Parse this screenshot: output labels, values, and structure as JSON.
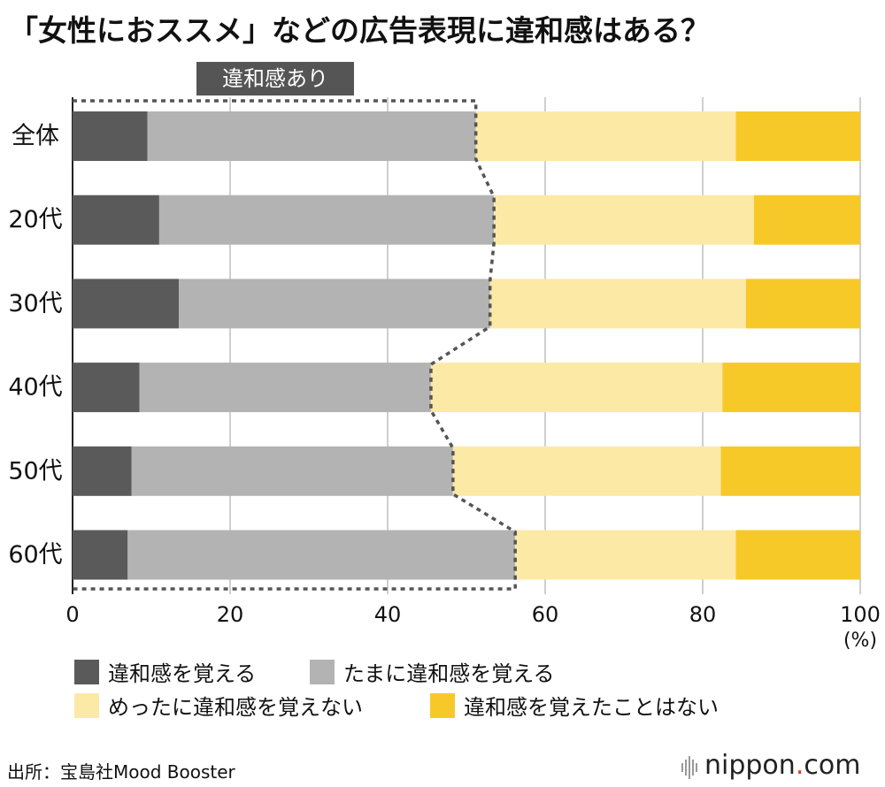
{
  "title": "「女性におススメ」などの広告表現に違和感はある？",
  "chart_data": {
    "type": "bar",
    "orientation": "horizontal",
    "stacked": true,
    "categories": [
      "全体",
      "20代",
      "30代",
      "40代",
      "50代",
      "60代"
    ],
    "series": [
      {
        "name": "違和感を覚える",
        "color": "#5a5a5a",
        "values": [
          9.5,
          11,
          13.5,
          8.5,
          7.5,
          7
        ]
      },
      {
        "name": "たまに違和感を覚える",
        "color": "#b3b3b3",
        "values": [
          41.7,
          42.5,
          39.5,
          37,
          40.8,
          49.2
        ]
      },
      {
        "name": "めったに違和感を覚えない",
        "color": "#fde9a6",
        "values": [
          33,
          33,
          32.5,
          37,
          34,
          28
        ]
      },
      {
        "name": "違和感を覚えたことはない",
        "color": "#f7c928",
        "values": [
          15.8,
          13.5,
          14.5,
          17.5,
          17.7,
          15.8
        ]
      }
    ],
    "xlim": [
      0,
      100
    ],
    "xticks": [
      "0",
      "20",
      "40",
      "60",
      "80",
      "100"
    ],
    "xunit": "(%)",
    "grid": true,
    "annotation": "違和感あり",
    "legend_position": "bottom"
  },
  "source": "出所：宝島社Mood Booster",
  "brand": {
    "name": "nippon",
    "dot": ".",
    "suffix": "com",
    "accent": "#e23a2b"
  }
}
